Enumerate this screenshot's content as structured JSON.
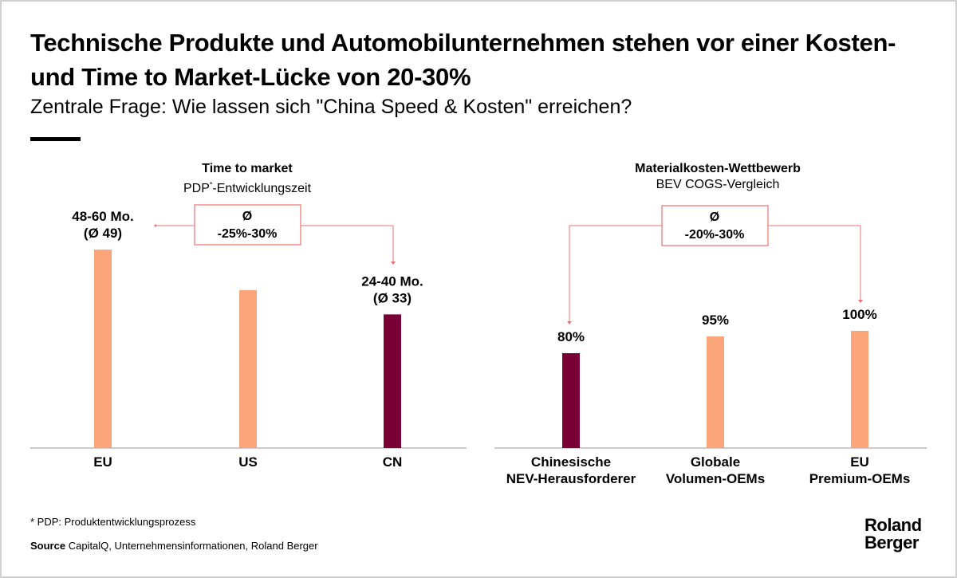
{
  "title": "Technische Produkte und Automobilunternehmen stehen vor einer Kosten- und Time to Market-Lücke von 20-30%",
  "subtitle": "Zentrale Frage: Wie lassen sich \"China Speed & Kosten\" erreichen?",
  "colors": {
    "light": "#FCA57A",
    "dark": "#7A0035",
    "annotation": "#F07070"
  },
  "chart_data": [
    {
      "type": "bar",
      "title": "Time to market",
      "subtitle_pre": "PDP",
      "subtitle_sup": "*",
      "subtitle_post": "-Entwicklungszeit",
      "categories": [
        "EU",
        "US",
        "CN"
      ],
      "values": [
        49,
        39,
        33
      ],
      "data_labels": [
        [
          "48-60 Mo.",
          "(Ø 49)"
        ],
        [
          "",
          ""
        ],
        [
          "24-40 Mo.",
          "(Ø 33)"
        ]
      ],
      "highlight": [
        false,
        false,
        true
      ],
      "annotation": [
        "Ø",
        "-25%-30%"
      ]
    },
    {
      "type": "bar",
      "title": "Materialkosten-Wettbewerb",
      "subtitle": "BEV COGS-Vergleich",
      "categories": [
        [
          "Chinesische",
          "NEV-Herausforderer"
        ],
        [
          "Globale",
          "Volumen-OEMs"
        ],
        [
          "EU",
          "Premium-OEMs"
        ]
      ],
      "values": [
        80,
        95,
        100
      ],
      "data_labels": [
        "80%",
        "95%",
        "100%"
      ],
      "highlight": [
        true,
        false,
        false
      ],
      "annotation": [
        "Ø",
        "-20%-30%"
      ]
    }
  ],
  "footnote": "* PDP: Produktentwicklungsprozess",
  "source_label": "Source",
  "source": "CapitalQ, Unternehmensinformationen, Roland Berger",
  "logo": [
    "Roland",
    "Berger"
  ]
}
